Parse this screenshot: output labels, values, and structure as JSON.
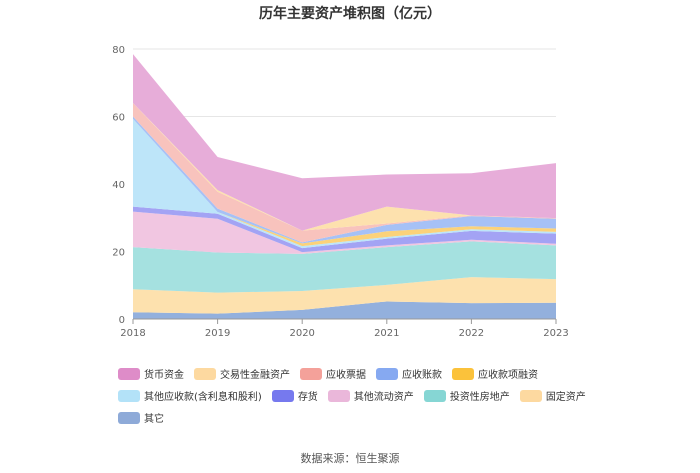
{
  "chart_data": {
    "type": "area",
    "stacked": true,
    "title": "历年主要资产堆积图（亿元）",
    "x": [
      "2018",
      "2019",
      "2020",
      "2021",
      "2022",
      "2023"
    ],
    "ylim": [
      0,
      80
    ],
    "yticks": [
      0,
      20,
      40,
      60,
      80
    ],
    "grid": true,
    "legend_position": "bottom",
    "series": [
      {
        "name": "其它",
        "color": "#93b0dd",
        "values": [
          2.0,
          1.6,
          2.7,
          5.2,
          4.7,
          4.8
        ]
      },
      {
        "name": "固定资产",
        "color": "#fde1ae",
        "values": [
          6.8,
          6.2,
          5.6,
          4.9,
          7.7,
          7.0
        ]
      },
      {
        "name": "投资性房地产",
        "color": "#a5e1e0",
        "values": [
          12.5,
          11.9,
          11.0,
          11.2,
          10.6,
          10.0
        ]
      },
      {
        "name": "其他流动资产",
        "color": "#f1c6e1",
        "values": [
          10.5,
          10.0,
          0.5,
          0.5,
          0.5,
          0.5
        ]
      },
      {
        "name": "存货",
        "color": "#a3a3f4",
        "values": [
          1.5,
          1.5,
          1.2,
          2.0,
          2.6,
          3.0
        ]
      },
      {
        "name": "其他应收款(含利息和股利)",
        "color": "#bde5f9",
        "values": [
          26.0,
          0.5,
          0.6,
          0.5,
          0.5,
          0.5
        ]
      },
      {
        "name": "应收款项融资",
        "color": "#fbd27a",
        "values": [
          0.0,
          0.0,
          0.8,
          1.7,
          0.9,
          1.0
        ]
      },
      {
        "name": "应收账款",
        "color": "#a6c1f6",
        "values": [
          0.7,
          1.0,
          0.3,
          1.9,
          3.0,
          2.9
        ]
      },
      {
        "name": "应收票据",
        "color": "#f8c3bd",
        "values": [
          4.0,
          5.0,
          3.5,
          0.4,
          0.2,
          0.2
        ]
      },
      {
        "name": "交易性金融资产",
        "color": "#fde1ae",
        "values": [
          0.0,
          0.5,
          0.0,
          5.0,
          0.0,
          0.0
        ]
      },
      {
        "name": "货币资金",
        "color": "#e7add9",
        "values": [
          14.5,
          9.8,
          15.5,
          9.5,
          12.5,
          16.3
        ]
      }
    ]
  },
  "legend": {
    "row1": [
      "货币资金",
      "交易性金融资产",
      "应收票据",
      "应收账款",
      "应收款项融资"
    ],
    "row2": [
      "其他应收款(含利息和股利)",
      "存货",
      "其他流动资产",
      "投资性房地产",
      "固定资产"
    ],
    "row3": [
      "其它"
    ],
    "colors": {
      "货币资金": "#de8cc8",
      "交易性金融资产": "#fdd9a0",
      "应收票据": "#f4a19a",
      "应收账款": "#86a9f1",
      "应收款项融资": "#fbc23b",
      "其他应收款(含利息和股利)": "#b3e2f8",
      "存货": "#7679ee",
      "其他流动资产": "#eab7da",
      "投资性房地产": "#86d6d4",
      "固定资产": "#fdd9a0",
      "其它": "#8eaad8"
    }
  },
  "source": "数据来源：恒生聚源"
}
